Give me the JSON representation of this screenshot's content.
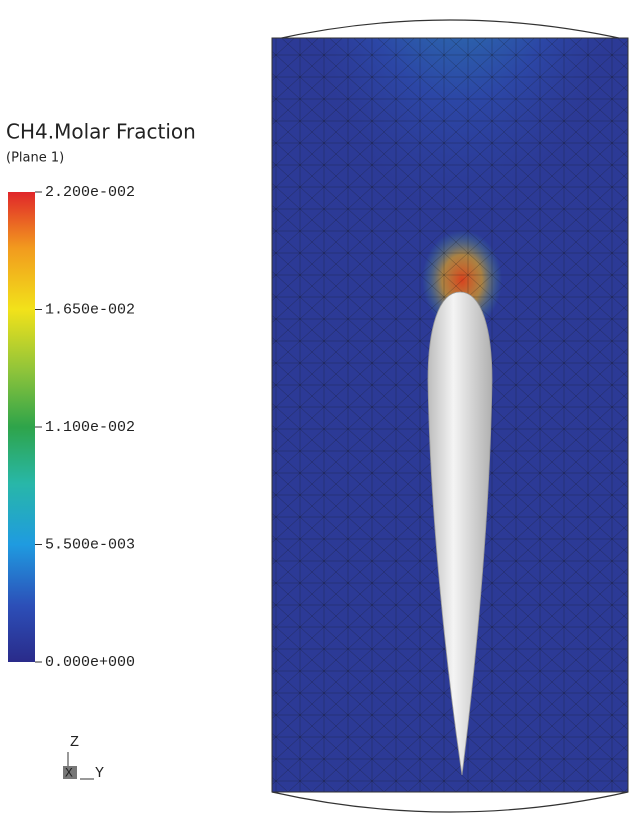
{
  "legend": {
    "title": "CH4.Molar Fraction",
    "subtitle": "(Plane  1)",
    "range": [
      0,
      0.022
    ],
    "ticks": [
      {
        "value": 0.022,
        "label": "2.200e-002"
      },
      {
        "value": 0.0165,
        "label": "1.650e-002"
      },
      {
        "value": 0.011,
        "label": "1.100e-002"
      },
      {
        "value": 0.0055,
        "label": "5.500e-003"
      },
      {
        "value": 0,
        "label": "0.000e+000"
      }
    ]
  },
  "triad": {
    "z": "Z",
    "x": "X",
    "y": "Y"
  }
}
